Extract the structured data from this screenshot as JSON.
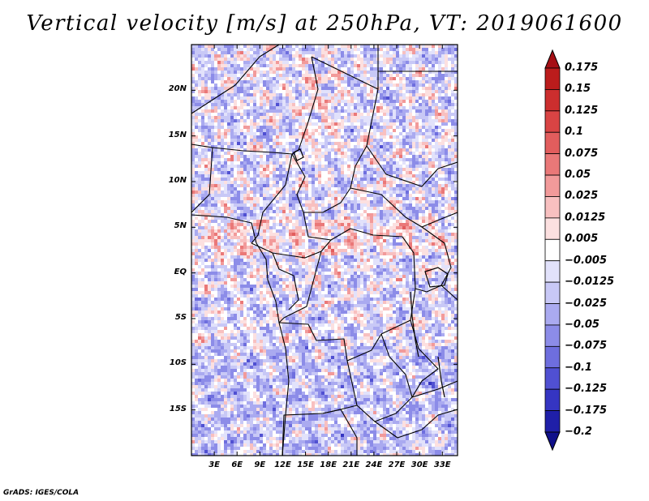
{
  "title": "Vertical velocity [m/s] at 250hPa, VT: 2019061600",
  "credit": "GrADS: IGES/COLA",
  "map": {
    "lon_range": [
      0,
      35
    ],
    "lat_range": [
      -20,
      25
    ],
    "lat_labels": [
      {
        "value": 20,
        "text": "20N"
      },
      {
        "value": 15,
        "text": "15N"
      },
      {
        "value": 10,
        "text": "10N"
      },
      {
        "value": 5,
        "text": "5N"
      },
      {
        "value": 0,
        "text": "EQ"
      },
      {
        "value": -5,
        "text": "5S"
      },
      {
        "value": -10,
        "text": "10S"
      },
      {
        "value": -15,
        "text": "15S"
      }
    ],
    "lon_labels": [
      {
        "value": 3,
        "text": "3E"
      },
      {
        "value": 6,
        "text": "6E"
      },
      {
        "value": 9,
        "text": "9E"
      },
      {
        "value": 12,
        "text": "12E"
      },
      {
        "value": 15,
        "text": "15E"
      },
      {
        "value": 18,
        "text": "18E"
      },
      {
        "value": 21,
        "text": "21E"
      },
      {
        "value": 24,
        "text": "24E"
      },
      {
        "value": 27,
        "text": "27E"
      },
      {
        "value": 30,
        "text": "30E"
      },
      {
        "value": 33,
        "text": "33E"
      }
    ]
  },
  "colorbar": {
    "labels": [
      "0.175",
      "0.15",
      "0.125",
      "0.1",
      "0.075",
      "0.05",
      "0.025",
      "0.0125",
      "0.005",
      "−0.005",
      "−0.0125",
      "−0.025",
      "−0.05",
      "−0.075",
      "−0.1",
      "−0.125",
      "−0.175",
      "−0.2"
    ],
    "colors": [
      "#a50f15",
      "#bb1c1c",
      "#cc2e2e",
      "#d94444",
      "#e25d5d",
      "#ea7878",
      "#f29a9a",
      "#f8c0c0",
      "#fce0e0",
      "#ffffff",
      "#e2e2fb",
      "#c8c8f6",
      "#aaaaf0",
      "#8c8ce8",
      "#6e6ede",
      "#5050d2",
      "#3535c2",
      "#1f1fa8",
      "#10108a"
    ]
  }
}
